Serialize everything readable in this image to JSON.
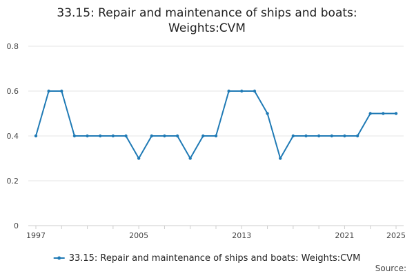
{
  "chart_data": {
    "type": "line",
    "title_lines": [
      "33.15: Repair and maintenance of ships and boats:",
      "Weights:CVM"
    ],
    "xlabel": "",
    "ylabel": "",
    "x": [
      1997,
      1998,
      1999,
      2000,
      2001,
      2002,
      2003,
      2004,
      2005,
      2006,
      2007,
      2008,
      2009,
      2010,
      2011,
      2012,
      2013,
      2014,
      2015,
      2016,
      2017,
      2018,
      2019,
      2020,
      2021,
      2022,
      2023,
      2024,
      2025
    ],
    "series": [
      {
        "name": "33.15: Repair and maintenance of ships and boats: Weights:CVM",
        "values": [
          0.4,
          0.6,
          0.6,
          0.4,
          0.4,
          0.4,
          0.4,
          0.4,
          0.3,
          0.4,
          0.4,
          0.4,
          0.3,
          0.4,
          0.4,
          0.6,
          0.6,
          0.6,
          0.5,
          0.3,
          0.4,
          0.4,
          0.4,
          0.4,
          0.4,
          0.4,
          0.5,
          0.5,
          0.5
        ]
      }
    ],
    "xticks": [
      1997,
      2005,
      2013,
      2021,
      2025
    ],
    "yticks": [
      "0",
      "0.2",
      "0.4",
      "0.6",
      "0.8"
    ],
    "ylim": [
      0,
      0.8
    ],
    "xlim": [
      1997,
      2025
    ],
    "grid": "horizontal",
    "legend": "bottom-center",
    "colors": {
      "series": "#1f7ab5",
      "grid": "#e6e6e6",
      "axis": "#cccccc",
      "tick_text": "#444444"
    }
  },
  "source_label": "Source:"
}
